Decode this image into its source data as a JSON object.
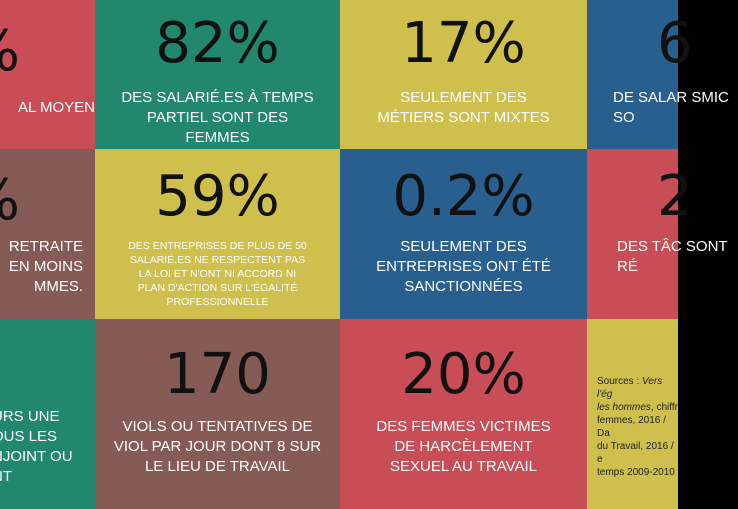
{
  "tiles": {
    "r1c0": {
      "number": "%",
      "caption": "AL MOYEN"
    },
    "r1c1": {
      "number": "82%",
      "caption": "DES SALARIÉ.ES À TEMPS PARTIEL SONT DES FEMMES"
    },
    "r1c2": {
      "number": "17%",
      "caption": "SEULEMENT DES MÉTIERS SONT MIXTES"
    },
    "r1c3": {
      "number": "6",
      "caption": "DE SALAR SMIC SO"
    },
    "r2c0": {
      "number": "%",
      "caption": "RETRAITE EN MOINS MMES."
    },
    "r2c1": {
      "number": "59%",
      "caption": "DES ENTREPRISES DE PLUS DE 50 SALARIÉ.ES NE RESPECTENT PAS LA LOI ET N'ONT NI ACCORD NI PLAN D'ACTION SUR L'ÉGALITÉ PROFESSIONNELLE"
    },
    "r2c2": {
      "number": "0.2%",
      "caption": "SEULEMENT DES ENTREPRISES ONT ÉTÉ SANCTIONNÉES"
    },
    "r2c3": {
      "number": "2",
      "caption": "DES TÂC SONT RÉ"
    },
    "r3c0": {
      "number": "",
      "caption": "URS UNE OUS LES NJOINT OU NT"
    },
    "r3c1": {
      "number": "170",
      "caption": "VIOLS OU TENTATIVES DE VIOL PAR JOUR DONT 8 SUR LE LIEU DE TRAVAIL"
    },
    "r3c2": {
      "number": "20%",
      "caption": "DES FEMMES VICTIMES DE HARCÈLEMENT SEXUEL AU TRAVAIL"
    },
    "r3c3": {
      "sources_prefix": "Sources : ",
      "sources_em1": "Vers l'ég",
      "sources_em2": "les hommes",
      "sources_rest1": ", chiffr",
      "sources_line3": "femmes, 2016 / Da",
      "sources_line4": "du Travail, 2016 / e",
      "sources_line5": "temps 2009-2010"
    }
  },
  "colors": {
    "red": "#c84d56",
    "green": "#21876e",
    "yellow": "#cfc04e",
    "blue": "#295f8f",
    "brown": "#875b55"
  }
}
